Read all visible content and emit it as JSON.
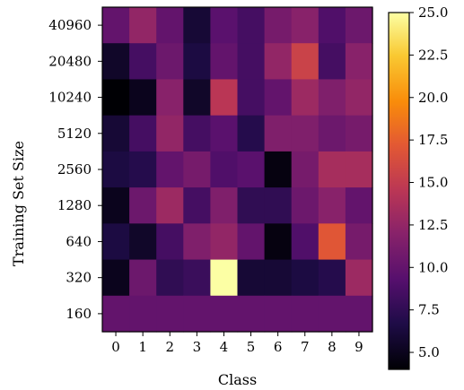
{
  "chart_data": {
    "type": "heatmap",
    "title": "",
    "xlabel": "Class",
    "ylabel": "Training Set Size",
    "x_categories": [
      "0",
      "1",
      "2",
      "3",
      "4",
      "5",
      "6",
      "7",
      "8",
      "9"
    ],
    "y_categories": [
      "40960",
      "20480",
      "10240",
      "5120",
      "2560",
      "1280",
      "640",
      "320",
      "160"
    ],
    "values": [
      [
        10.0,
        12.5,
        10.0,
        6.0,
        9.5,
        8.5,
        11.0,
        12.0,
        9.0,
        10.5
      ],
      [
        5.5,
        8.5,
        10.5,
        6.5,
        10.0,
        8.5,
        12.5,
        15.5,
        8.5,
        12.0
      ],
      [
        4.0,
        5.0,
        12.0,
        5.5,
        14.5,
        8.5,
        10.0,
        13.0,
        11.5,
        12.5
      ],
      [
        6.0,
        8.5,
        12.5,
        8.5,
        9.5,
        7.0,
        11.5,
        11.5,
        10.5,
        11.0
      ],
      [
        6.5,
        7.0,
        10.0,
        11.0,
        9.0,
        9.5,
        4.5,
        11.0,
        13.5,
        13.5
      ],
      [
        5.0,
        10.5,
        13.0,
        8.5,
        11.5,
        7.5,
        7.5,
        10.5,
        12.0,
        10.0
      ],
      [
        6.5,
        5.5,
        8.5,
        11.5,
        12.5,
        10.0,
        4.5,
        9.0,
        17.0,
        11.0
      ],
      [
        5.0,
        10.5,
        7.5,
        8.0,
        25.0,
        6.0,
        6.0,
        6.5,
        7.0,
        13.0
      ],
      [
        10.0,
        10.0,
        10.0,
        10.0,
        10.0,
        10.0,
        10.0,
        10.0,
        10.0,
        10.0
      ]
    ],
    "colormap": "inferno",
    "colorbar": {
      "min": 4.0,
      "max": 25.0,
      "ticks": [
        5.0,
        7.5,
        10.0,
        12.5,
        15.0,
        17.5,
        20.0,
        22.5,
        25.0
      ],
      "tick_labels": [
        "5.0",
        "7.5",
        "10.0",
        "12.5",
        "15.0",
        "17.5",
        "20.0",
        "22.5",
        "25.0"
      ]
    }
  }
}
